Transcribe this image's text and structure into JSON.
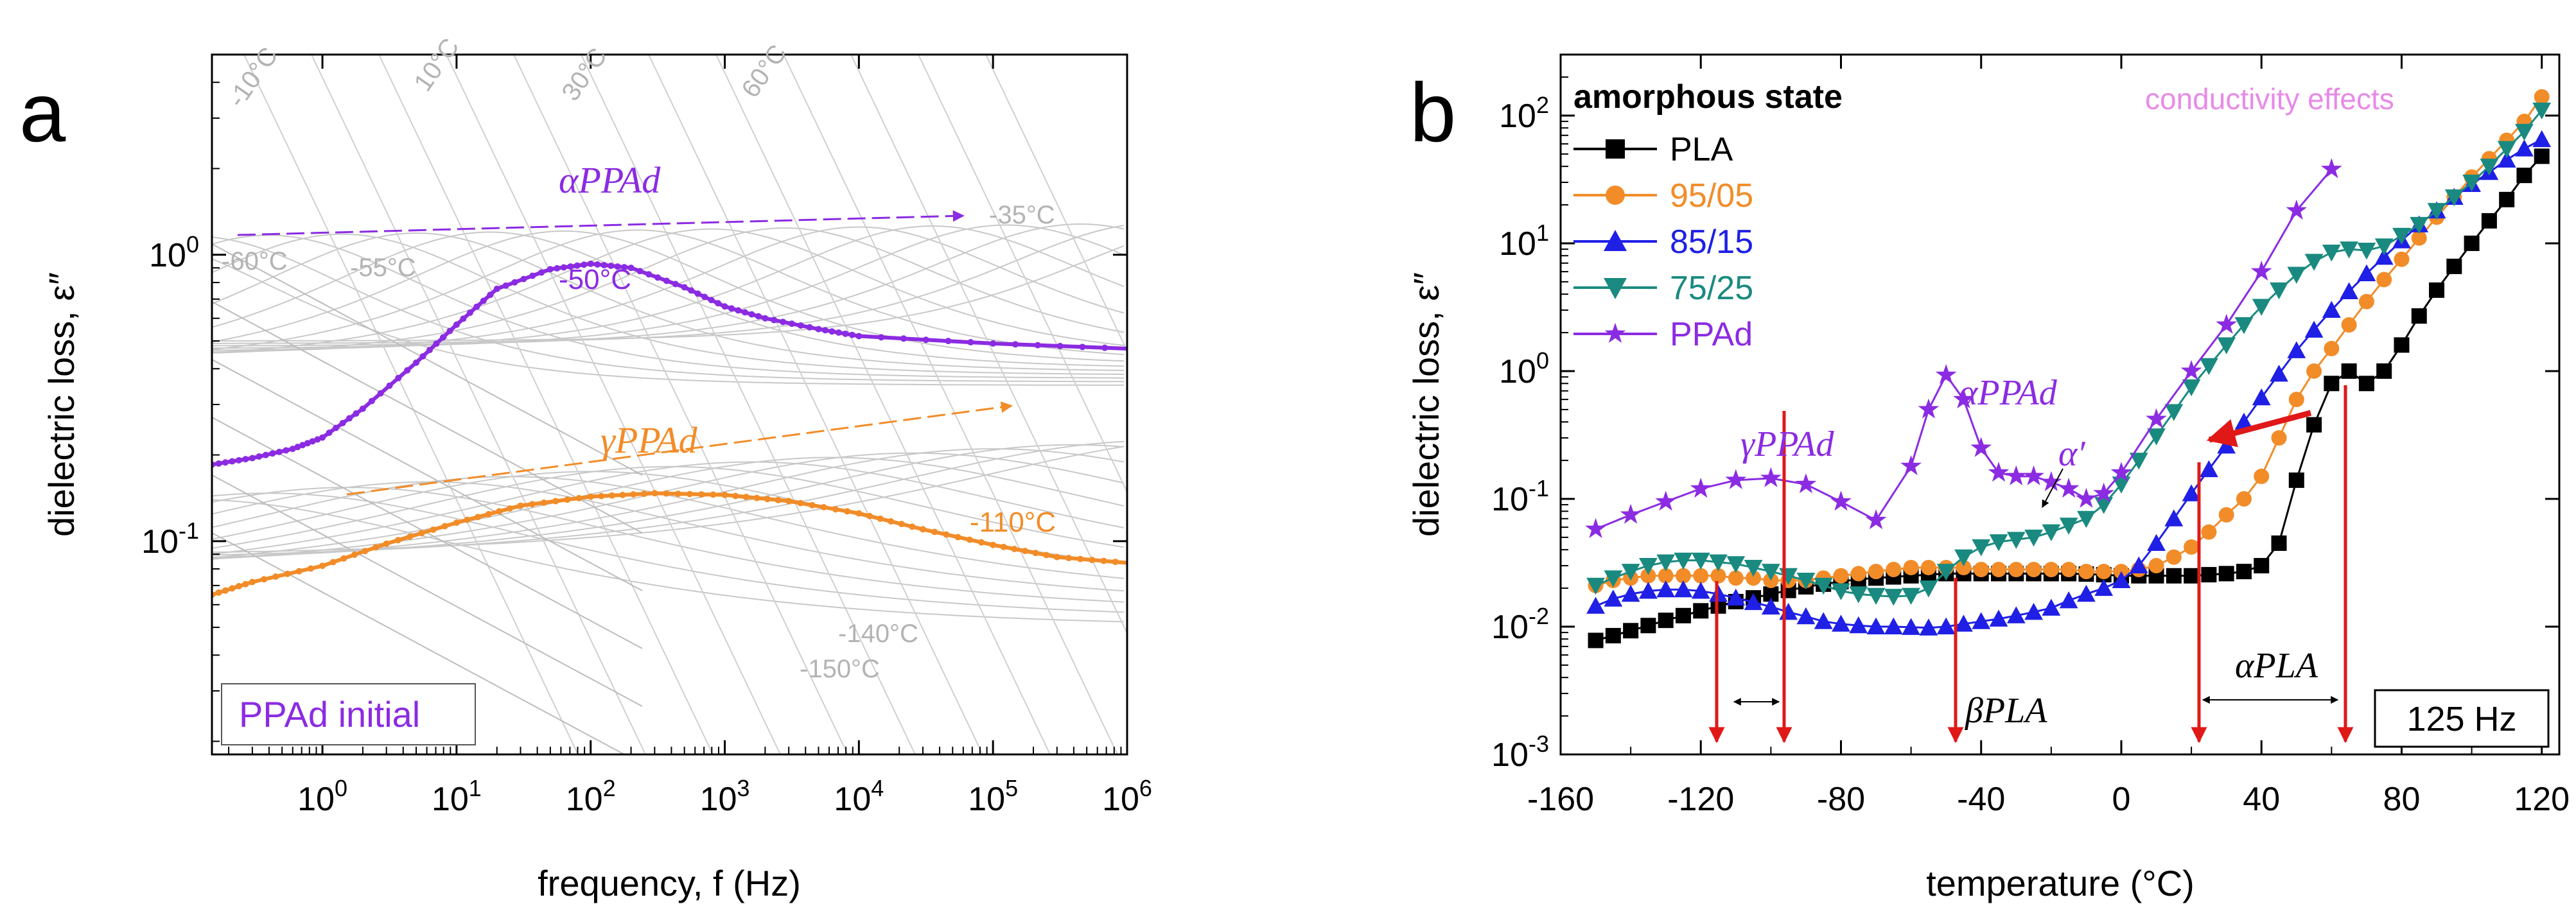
{
  "chart_data": [
    {
      "panel_label": "a",
      "type": "line",
      "xlabel": "frequency, f (Hz)",
      "ylabel": "dielectric loss, ε″",
      "x_scale": "log",
      "y_scale": "log",
      "xlim": [
        0.15,
        1000000
      ],
      "ylim": [
        0.018,
        5
      ],
      "x_ticks": [
        "10^0",
        "10^1",
        "10^2",
        "10^3",
        "10^4",
        "10^5",
        "10^6"
      ],
      "y_ticks": [
        "10^-1",
        "10^0"
      ],
      "legend_box": "PPAd initial",
      "series": [
        {
          "name": "-50°C",
          "color": "#8b2be2",
          "x": [
            0.15,
            0.3,
            0.6,
            1,
            2,
            5,
            10,
            20,
            50,
            100,
            200,
            500,
            1000,
            2000,
            5000,
            10000,
            100000,
            1000000
          ],
          "y": [
            0.185,
            0.195,
            0.21,
            0.23,
            0.29,
            0.42,
            0.57,
            0.76,
            0.89,
            0.93,
            0.9,
            0.77,
            0.66,
            0.6,
            0.55,
            0.52,
            0.49,
            0.47
          ]
        },
        {
          "name": "-110°C",
          "color": "#f28c28",
          "x": [
            0.15,
            0.3,
            1,
            3,
            10,
            30,
            100,
            300,
            1000,
            3000,
            10000,
            30000,
            100000,
            300000,
            1000000
          ],
          "y": [
            0.065,
            0.072,
            0.082,
            0.098,
            0.116,
            0.133,
            0.143,
            0.147,
            0.145,
            0.138,
            0.125,
            0.11,
            0.097,
            0.088,
            0.084
          ]
        }
      ],
      "annotations": {
        "alpha_label": "αPPAd",
        "gamma_label": "γPPAd",
        "temp_labels": [
          "-10°C",
          "10°C",
          "30°C",
          "60°C",
          "-35°C",
          "-60°C",
          "-55°C",
          "-50°C",
          "-110°C",
          "-140°C",
          "-150°C"
        ]
      }
    },
    {
      "panel_label": "b",
      "type": "line",
      "xlabel": "temperature (°C)",
      "ylabel": "dielectric loss, ε″",
      "y_scale": "log",
      "xlim": [
        -160,
        125
      ],
      "ylim": [
        0.001,
        300
      ],
      "x_ticks": [
        -160,
        -120,
        -80,
        -40,
        0,
        40,
        80,
        120
      ],
      "y_ticks": [
        "10^-3",
        "10^-2",
        "10^-1",
        "10^0",
        "10^1",
        "10^2"
      ],
      "legend_title": "amorphous state",
      "frequency_label": "125 Hz",
      "series": [
        {
          "name": "PLA",
          "color": "#000000",
          "marker": "square",
          "x": [
            -150,
            -145,
            -140,
            -135,
            -130,
            -125,
            -120,
            -115,
            -110,
            -105,
            -100,
            -95,
            -90,
            -85,
            -80,
            -75,
            -70,
            -65,
            -60,
            -55,
            -50,
            -45,
            -40,
            -35,
            -30,
            -25,
            -20,
            -15,
            -10,
            -5,
            0,
            5,
            10,
            15,
            20,
            25,
            30,
            35,
            40,
            45,
            50,
            55,
            60,
            65,
            70,
            75,
            80,
            85,
            90,
            95,
            100,
            105,
            110,
            115,
            120
          ],
          "y": [
            0.0078,
            0.0085,
            0.0093,
            0.0102,
            0.0112,
            0.0122,
            0.0133,
            0.0145,
            0.0157,
            0.0168,
            0.018,
            0.0192,
            0.0205,
            0.0215,
            0.0225,
            0.0235,
            0.024,
            0.0245,
            0.025,
            0.0255,
            0.026,
            0.026,
            0.026,
            0.026,
            0.026,
            0.026,
            0.026,
            0.026,
            0.0258,
            0.0255,
            0.025,
            0.025,
            0.025,
            0.025,
            0.025,
            0.0255,
            0.026,
            0.027,
            0.03,
            0.045,
            0.14,
            0.38,
            0.8,
            1.0,
            0.8,
            1.0,
            1.6,
            2.7,
            4.3,
            6.6,
            10,
            15,
            22,
            34,
            48
          ]
        },
        {
          "name": "95/05",
          "color": "#f28c28",
          "marker": "circle",
          "x": [
            -150,
            -145,
            -140,
            -135,
            -130,
            -125,
            -120,
            -115,
            -110,
            -105,
            -100,
            -95,
            -90,
            -85,
            -80,
            -75,
            -70,
            -65,
            -60,
            -55,
            -50,
            -45,
            -40,
            -35,
            -30,
            -25,
            -20,
            -15,
            -10,
            -5,
            0,
            5,
            10,
            15,
            20,
            25,
            30,
            35,
            40,
            45,
            50,
            55,
            60,
            65,
            70,
            75,
            80,
            85,
            90,
            95,
            100,
            105,
            110,
            115,
            120
          ],
          "y": [
            0.021,
            0.023,
            0.024,
            0.025,
            0.025,
            0.025,
            0.025,
            0.025,
            0.024,
            0.024,
            0.023,
            0.023,
            0.023,
            0.024,
            0.025,
            0.026,
            0.027,
            0.028,
            0.029,
            0.029,
            0.029,
            0.029,
            0.028,
            0.028,
            0.028,
            0.028,
            0.028,
            0.028,
            0.027,
            0.027,
            0.027,
            0.028,
            0.03,
            0.035,
            0.042,
            0.055,
            0.075,
            0.1,
            0.15,
            0.3,
            0.6,
            1.0,
            1.5,
            2.3,
            3.5,
            5.2,
            7.5,
            11,
            16,
            23,
            33,
            46,
            64,
            90,
            140
          ]
        },
        {
          "name": "85/15",
          "color": "#1f1fe6",
          "marker": "triangle-up",
          "x": [
            -150,
            -145,
            -140,
            -135,
            -130,
            -125,
            -120,
            -115,
            -110,
            -105,
            -100,
            -95,
            -90,
            -85,
            -80,
            -75,
            -70,
            -65,
            -60,
            -55,
            -50,
            -45,
            -40,
            -35,
            -30,
            -25,
            -20,
            -15,
            -10,
            -5,
            0,
            5,
            10,
            15,
            20,
            25,
            30,
            35,
            40,
            45,
            50,
            55,
            60,
            65,
            70,
            75,
            80,
            85,
            90,
            95,
            100,
            105,
            110,
            115,
            120
          ],
          "y": [
            0.0145,
            0.0165,
            0.018,
            0.019,
            0.0195,
            0.0195,
            0.019,
            0.018,
            0.0168,
            0.0155,
            0.0143,
            0.013,
            0.012,
            0.011,
            0.0105,
            0.0102,
            0.01,
            0.01,
            0.0099,
            0.0098,
            0.01,
            0.0105,
            0.011,
            0.0115,
            0.0122,
            0.013,
            0.014,
            0.016,
            0.018,
            0.02,
            0.023,
            0.03,
            0.045,
            0.07,
            0.11,
            0.17,
            0.26,
            0.4,
            0.62,
            0.95,
            1.45,
            2.1,
            3.0,
            4.2,
            5.8,
            7.8,
            10.5,
            14,
            18,
            23,
            29,
            36,
            45,
            55,
            65
          ]
        },
        {
          "name": "75/25",
          "color": "#1a8a80",
          "marker": "triangle-down",
          "x": [
            -150,
            -145,
            -140,
            -135,
            -130,
            -125,
            -120,
            -115,
            -110,
            -105,
            -100,
            -95,
            -90,
            -85,
            -80,
            -75,
            -70,
            -65,
            -60,
            -55,
            -50,
            -45,
            -40,
            -35,
            -30,
            -25,
            -20,
            -15,
            -10,
            -5,
            0,
            5,
            10,
            15,
            20,
            25,
            30,
            35,
            40,
            45,
            50,
            55,
            60,
            65,
            70,
            75,
            80,
            85,
            90,
            95,
            100,
            105,
            110,
            115,
            120
          ],
          "y": [
            0.021,
            0.024,
            0.027,
            0.03,
            0.032,
            0.033,
            0.033,
            0.032,
            0.031,
            0.029,
            0.027,
            0.025,
            0.023,
            0.021,
            0.019,
            0.018,
            0.0175,
            0.0172,
            0.0175,
            0.02,
            0.027,
            0.035,
            0.042,
            0.046,
            0.048,
            0.05,
            0.055,
            0.062,
            0.07,
            0.09,
            0.13,
            0.2,
            0.31,
            0.48,
            0.75,
            1.1,
            1.6,
            2.3,
            3.2,
            4.3,
            5.7,
            7.2,
            8.5,
            9.0,
            8.8,
            9.5,
            11.5,
            14,
            18,
            23,
            30,
            40,
            55,
            75,
            110
          ]
        },
        {
          "name": "PPAd",
          "color": "#8b2be2",
          "marker": "star",
          "x": [
            -150,
            -140,
            -130,
            -120,
            -110,
            -100,
            -90,
            -80,
            -70,
            -60,
            -55,
            -50,
            -45,
            -40,
            -35,
            -30,
            -25,
            -20,
            -15,
            -10,
            -5,
            0,
            10,
            20,
            30,
            40,
            50,
            60
          ],
          "y": [
            0.058,
            0.075,
            0.095,
            0.12,
            0.14,
            0.145,
            0.13,
            0.095,
            0.068,
            0.18,
            0.5,
            0.93,
            0.6,
            0.25,
            0.16,
            0.15,
            0.15,
            0.135,
            0.12,
            0.1,
            0.11,
            0.16,
            0.42,
            1.0,
            2.3,
            6.0,
            18,
            38
          ]
        }
      ],
      "annotations": {
        "alpha_ppad": "αPPAd",
        "gamma_ppad": "γPPAd",
        "alpha_prime": "α′",
        "beta_pla": "βPLA",
        "alpha_pla": "αPLA",
        "conductivity": "conductivity effects"
      }
    }
  ]
}
